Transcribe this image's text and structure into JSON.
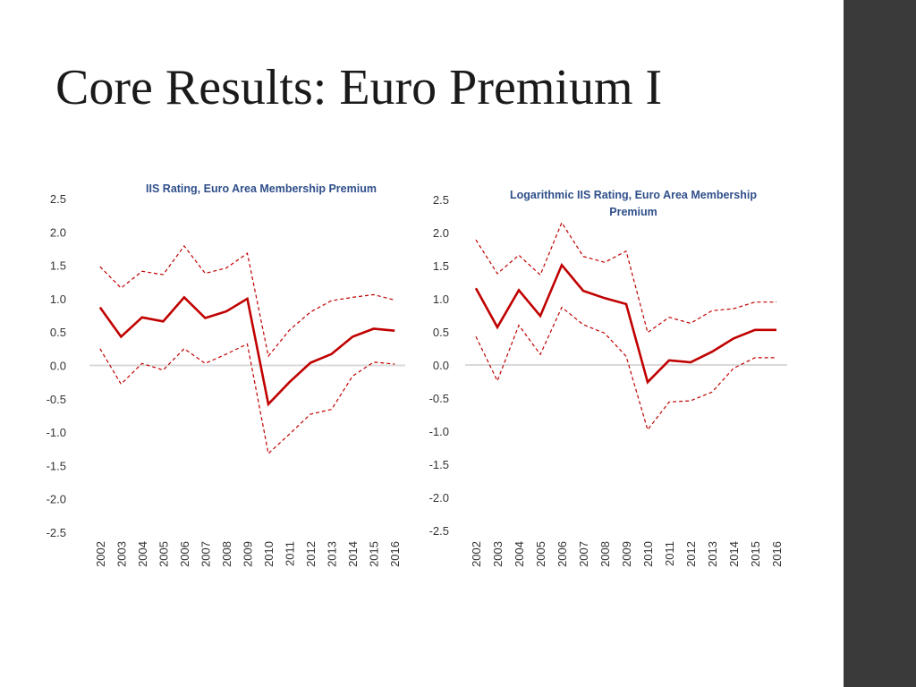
{
  "slide": {
    "title": "Core Results: Euro Premium I"
  },
  "colors": {
    "sidebar": "#3a3a3a",
    "series": "#c00000",
    "zero_line": "#d9d9d9",
    "chart_title": "#2f4f8a",
    "tick_text": "#333333"
  },
  "chart_data": [
    {
      "type": "line",
      "title_lines": [
        "IIS Rating, Euro Area Membership Premium"
      ],
      "x": [
        "2002",
        "2003",
        "2004",
        "2005",
        "2006",
        "2007",
        "2008",
        "2009",
        "2010",
        "2011",
        "2012",
        "2013",
        "2014",
        "2015",
        "2016"
      ],
      "ylim": [
        -2.5,
        2.5
      ],
      "yticks": [
        "2.5",
        "2.0",
        "1.5",
        "1.0",
        "0.5",
        "0.0",
        "-0.5",
        "-1.0",
        "-1.5",
        "-2.0",
        "-2.5"
      ],
      "grid": false,
      "legend": "none",
      "series": [
        {
          "style": "solid",
          "values": [
            0.87,
            0.43,
            0.72,
            0.66,
            1.02,
            0.71,
            0.81,
            1.0,
            -0.58,
            -0.25,
            0.04,
            0.17,
            0.43,
            0.55,
            0.52
          ]
        },
        {
          "style": "dashed",
          "values": [
            1.48,
            1.16,
            1.41,
            1.36,
            1.79,
            1.38,
            1.46,
            1.68,
            0.14,
            0.53,
            0.8,
            0.97,
            1.02,
            1.06,
            0.98
          ]
        },
        {
          "style": "dashed",
          "values": [
            0.25,
            -0.28,
            0.03,
            -0.07,
            0.25,
            0.03,
            0.17,
            0.32,
            -1.32,
            -1.03,
            -0.73,
            -0.66,
            -0.16,
            0.05,
            0.02
          ]
        }
      ]
    },
    {
      "type": "line",
      "title_lines": [
        "Logarithmic IIS Rating, Euro Area Membership",
        "Premium"
      ],
      "x": [
        "2002",
        "2003",
        "2004",
        "2005",
        "2006",
        "2007",
        "2008",
        "2009",
        "2010",
        "2011",
        "2012",
        "2013",
        "2014",
        "2015",
        "2016"
      ],
      "ylim": [
        -2.5,
        2.5
      ],
      "yticks": [
        "2.5",
        "2.0",
        "1.5",
        "1.0",
        "0.5",
        "0.0",
        "-0.5",
        "-1.0",
        "-1.5",
        "-2.0",
        "-2.5"
      ],
      "grid": false,
      "legend": "none",
      "series": [
        {
          "style": "solid",
          "values": [
            1.16,
            0.57,
            1.13,
            0.74,
            1.51,
            1.12,
            1.01,
            0.92,
            -0.26,
            0.07,
            0.04,
            0.2,
            0.4,
            0.53,
            0.53
          ]
        },
        {
          "style": "dashed",
          "values": [
            1.89,
            1.38,
            1.66,
            1.36,
            2.15,
            1.64,
            1.55,
            1.72,
            0.49,
            0.72,
            0.63,
            0.82,
            0.85,
            0.95,
            0.95
          ]
        },
        {
          "style": "dashed",
          "values": [
            0.43,
            -0.24,
            0.6,
            0.16,
            0.87,
            0.61,
            0.48,
            0.13,
            -0.98,
            -0.56,
            -0.54,
            -0.41,
            -0.05,
            0.11,
            0.11
          ]
        }
      ]
    }
  ]
}
